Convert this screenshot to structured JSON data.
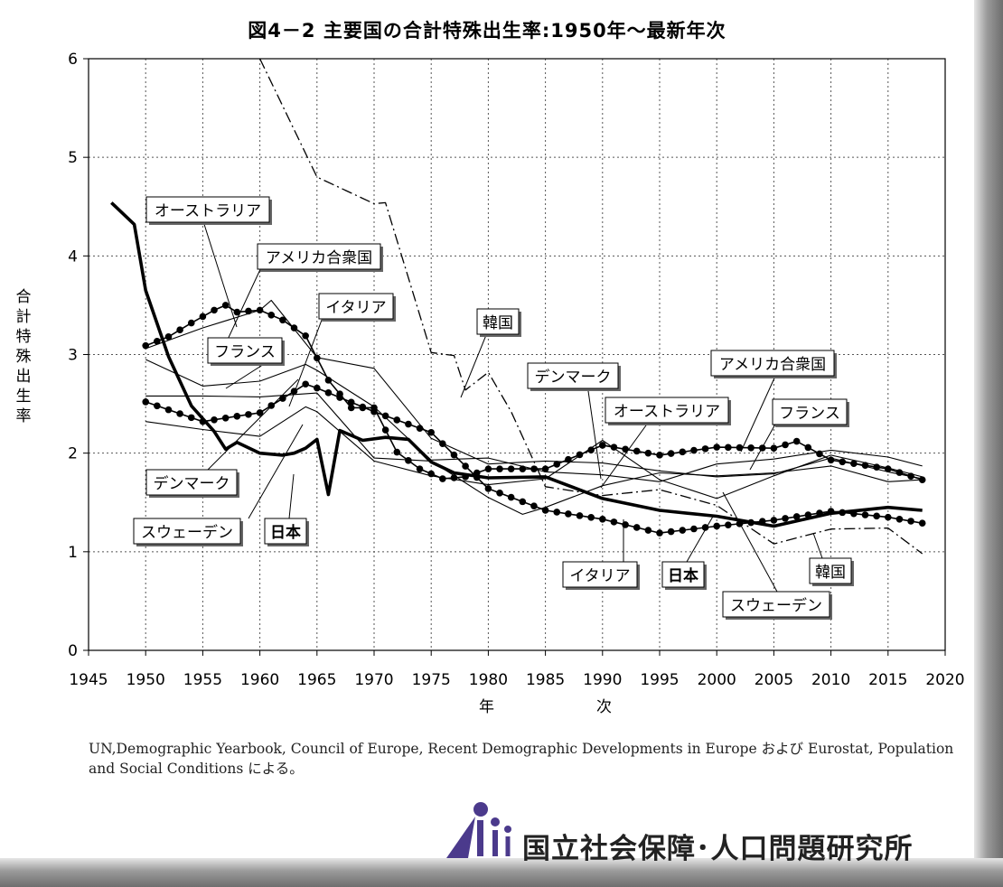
{
  "title": "図4－2 主要国の合計特殊出生率:1950年～最新年次",
  "source": "UN,Demographic Yearbook, Council of Europe, Recent Demographic Developments in Europe および Eurostat, Population and Social Conditions による。",
  "logo_text": "国立社会保障･人口問題研究所",
  "chart_data": {
    "type": "line",
    "xlabel": "年　次",
    "ylabel": "合計特殊出生率",
    "xlim": [
      1945,
      2020
    ],
    "ylim": [
      0,
      6
    ],
    "xticks": [
      1945,
      1950,
      1955,
      1960,
      1965,
      1970,
      1975,
      1980,
      1985,
      1990,
      1995,
      2000,
      2005,
      2010,
      2015,
      2020
    ],
    "yticks": [
      0,
      1,
      2,
      3,
      4,
      5,
      6
    ],
    "grid": true,
    "series": [
      {
        "name": "日本",
        "style": "thick",
        "x": [
          1947,
          1949,
          1950,
          1952,
          1954,
          1956,
          1957,
          1958,
          1960,
          1962,
          1963,
          1964,
          1965,
          1966,
          1967,
          1969,
          1971,
          1973,
          1975,
          1977,
          1980,
          1985,
          1990,
          1995,
          2000,
          2005,
          2010,
          2015,
          2018
        ],
        "y": [
          4.54,
          4.32,
          3.65,
          2.98,
          2.48,
          2.22,
          2.04,
          2.11,
          2.0,
          1.98,
          2.0,
          2.05,
          2.14,
          1.58,
          2.23,
          2.13,
          2.16,
          2.14,
          1.91,
          1.8,
          1.75,
          1.76,
          1.54,
          1.42,
          1.36,
          1.26,
          1.39,
          1.45,
          1.42
        ]
      },
      {
        "name": "アメリカ合衆国",
        "style": "dotted",
        "x": [
          1950,
          1952,
          1954,
          1956,
          1957,
          1958,
          1960,
          1962,
          1964,
          1966,
          1968,
          1970,
          1972,
          1974,
          1976,
          1978,
          1980,
          1985,
          1990,
          1995,
          2000,
          2005,
          2007,
          2010,
          2015,
          2018
        ],
        "y": [
          3.09,
          3.18,
          3.32,
          3.45,
          3.5,
          3.43,
          3.45,
          3.35,
          3.19,
          2.74,
          2.46,
          2.46,
          2.01,
          1.84,
          1.74,
          1.76,
          1.84,
          1.84,
          2.08,
          1.98,
          2.06,
          2.05,
          2.12,
          1.93,
          1.84,
          1.73
        ]
      },
      {
        "name": "フランス",
        "style": "thin",
        "x": [
          1950,
          1955,
          1960,
          1964,
          1965,
          1970,
          1975,
          1980,
          1985,
          1990,
          1995,
          2000,
          2005,
          2010,
          2015,
          2018
        ],
        "y": [
          2.95,
          2.68,
          2.73,
          2.9,
          2.84,
          2.47,
          1.93,
          1.95,
          1.81,
          1.78,
          1.71,
          1.89,
          1.94,
          2.03,
          1.96,
          1.87
        ]
      },
      {
        "name": "イタリア",
        "style": "dotted",
        "x": [
          1950,
          1955,
          1960,
          1964,
          1965,
          1970,
          1975,
          1980,
          1985,
          1990,
          1995,
          2000,
          2005,
          2010,
          2015,
          2018
        ],
        "y": [
          2.52,
          2.32,
          2.41,
          2.7,
          2.66,
          2.42,
          2.21,
          1.64,
          1.42,
          1.33,
          1.19,
          1.26,
          1.32,
          1.41,
          1.35,
          1.29
        ]
      },
      {
        "name": "スウェーデン",
        "style": "thin",
        "x": [
          1950,
          1955,
          1960,
          1964,
          1965,
          1970,
          1975,
          1980,
          1985,
          1990,
          1995,
          2000,
          2005,
          2010,
          2015,
          2018
        ],
        "y": [
          2.32,
          2.24,
          2.17,
          2.47,
          2.42,
          1.92,
          1.77,
          1.68,
          1.74,
          2.13,
          1.73,
          1.54,
          1.77,
          1.98,
          1.85,
          1.76
        ]
      },
      {
        "name": "オーストラリア",
        "style": "thin",
        "x": [
          1950,
          1955,
          1960,
          1961,
          1965,
          1970,
          1975,
          1980,
          1985,
          1990,
          1995,
          2000,
          2005,
          2010,
          2015,
          2018
        ],
        "y": [
          3.06,
          3.27,
          3.45,
          3.55,
          2.97,
          2.86,
          2.15,
          1.89,
          1.92,
          1.9,
          1.82,
          1.76,
          1.79,
          1.95,
          1.81,
          1.74
        ]
      },
      {
        "name": "デンマーク",
        "style": "thin",
        "x": [
          1950,
          1955,
          1960,
          1965,
          1970,
          1975,
          1980,
          1983,
          1985,
          1990,
          1995,
          2000,
          2005,
          2010,
          2015,
          2018
        ],
        "y": [
          2.58,
          2.58,
          2.57,
          2.61,
          1.95,
          1.92,
          1.55,
          1.38,
          1.45,
          1.67,
          1.8,
          1.77,
          1.8,
          1.87,
          1.71,
          1.73
        ]
      },
      {
        "name": "韓国",
        "style": "dashdot",
        "x": [
          1960,
          1965,
          1970,
          1971,
          1975,
          1977,
          1978,
          1980,
          1982,
          1985,
          1990,
          1995,
          2000,
          2005,
          2010,
          2015,
          2018
        ],
        "y": [
          6.0,
          4.8,
          4.53,
          4.54,
          3.02,
          2.99,
          2.64,
          2.82,
          2.42,
          1.66,
          1.57,
          1.63,
          1.47,
          1.08,
          1.23,
          1.24,
          0.98
        ]
      }
    ],
    "annotations": [
      "オーストラリア",
      "アメリカ合衆国",
      "イタリア",
      "フランス",
      "韓国",
      "デンマーク",
      "オーストラリア",
      "アメリカ合衆国",
      "フランス",
      "デンマーク",
      "スウェーデン",
      "日本",
      "イタリア",
      "日本",
      "スウェーデン",
      "韓国"
    ]
  }
}
